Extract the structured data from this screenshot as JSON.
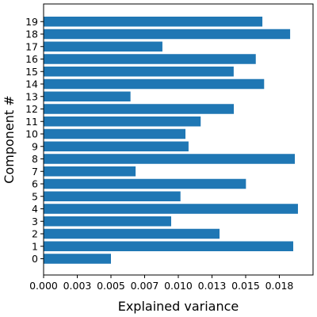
{
  "chart_data": {
    "type": "bar",
    "orientation": "horizontal",
    "xlabel": "Explained variance",
    "ylabel": "Component #",
    "categories": [
      "0",
      "1",
      "2",
      "3",
      "4",
      "5",
      "6",
      "7",
      "8",
      "9",
      "10",
      "11",
      "12",
      "13",
      "14",
      "15",
      "16",
      "17",
      "18",
      "19"
    ],
    "values": [
      0.005,
      0.01853,
      0.01306,
      0.00947,
      0.01888,
      0.01016,
      0.01502,
      0.00683,
      0.01865,
      0.01076,
      0.01053,
      0.01166,
      0.01412,
      0.00645,
      0.01637,
      0.01411,
      0.01575,
      0.00882,
      0.0183,
      0.01624
    ],
    "xlim": [
      0,
      0.02
    ],
    "xticks": [
      0.0,
      0.0025,
      0.005,
      0.0075,
      0.01,
      0.0125,
      0.015,
      0.0175
    ],
    "xtick_labels": [
      "0.000",
      "0.003",
      "0.005",
      "0.007",
      "0.010",
      "0.013",
      "0.015",
      "0.018"
    ],
    "bar_color": "#1f77b4",
    "grid": false
  }
}
